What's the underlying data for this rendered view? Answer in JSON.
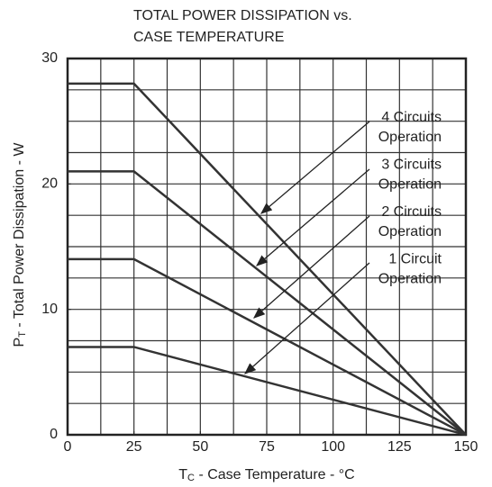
{
  "chart_data": {
    "type": "line",
    "title_lines": [
      "TOTAL POWER DISSIPATION vs.",
      "CASE TEMPERATURE"
    ],
    "x_label_parts": [
      "T",
      "C",
      " - Case Temperature - °C"
    ],
    "y_label_parts": [
      "P",
      "T",
      " - Total Power Dissipation - W"
    ],
    "x": [
      0,
      25,
      150
    ],
    "series": [
      {
        "name": "4 Circuits Operation",
        "label_lines": [
          "4 Circuits",
          "Operation"
        ],
        "color": "#333333",
        "values": [
          28,
          28,
          0
        ]
      },
      {
        "name": "3 Circuits Operation",
        "label_lines": [
          "3 Circuits",
          "Operation"
        ],
        "color": "#333333",
        "values": [
          21,
          21,
          0
        ]
      },
      {
        "name": "2 Circuits Operation",
        "label_lines": [
          "2 Circuits",
          "Operation"
        ],
        "color": "#333333",
        "values": [
          14,
          14,
          0
        ]
      },
      {
        "name": "1 Circuit Operation",
        "label_lines": [
          "1 Circuit",
          "Operation"
        ],
        "color": "#333333",
        "values": [
          7,
          7,
          0
        ]
      }
    ],
    "xlim": [
      0,
      150
    ],
    "ylim": [
      0,
      30
    ],
    "xticks": [
      0,
      25,
      50,
      75,
      100,
      125,
      150
    ],
    "yticks": [
      0,
      10,
      20,
      30
    ],
    "xgrid": [
      12.5,
      25,
      37.5,
      50,
      62.5,
      75,
      87.5,
      100,
      112.5,
      125,
      137.5
    ],
    "ygrid": [
      2.5,
      5,
      7.5,
      10,
      12.5,
      15,
      17.5,
      20,
      22.5,
      25,
      27.5
    ],
    "grid": true
  }
}
